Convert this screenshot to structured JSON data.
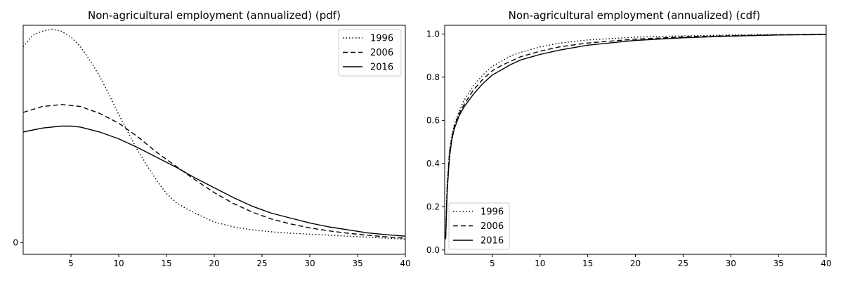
{
  "chart_data": [
    {
      "type": "line",
      "title": "Non-agricultural employment (annualized) (pdf)",
      "xlabel": "",
      "ylabel": "",
      "xlim": [
        0,
        40
      ],
      "ylim": [
        -0.012,
        0.222
      ],
      "x_ticks": [
        "5",
        "10",
        "15",
        "20",
        "25",
        "30",
        "35",
        "40"
      ],
      "y_ticks": [
        "0"
      ],
      "legend": "top-right",
      "grid": false,
      "series": [
        {
          "name": "1996",
          "style": "dotted",
          "x": [
            0,
            1,
            2,
            3,
            4,
            5,
            6,
            7,
            8,
            9,
            10,
            11,
            12,
            13,
            14,
            15,
            16,
            17,
            18,
            20,
            22,
            24,
            26,
            28,
            30,
            32,
            34,
            36,
            38,
            40
          ],
          "y": [
            0.2,
            0.212,
            0.216,
            0.218,
            0.216,
            0.21,
            0.2,
            0.186,
            0.17,
            0.151,
            0.131,
            0.112,
            0.094,
            0.078,
            0.063,
            0.05,
            0.041,
            0.035,
            0.03,
            0.021,
            0.016,
            0.013,
            0.011,
            0.0095,
            0.0085,
            0.0075,
            0.0065,
            0.0055,
            0.0045,
            0.0035
          ]
        },
        {
          "name": "2006",
          "style": "dashed",
          "x": [
            0,
            2,
            4,
            6,
            8,
            10,
            12,
            14,
            16,
            18,
            20,
            22,
            24,
            26,
            28,
            30,
            32,
            34,
            36,
            38,
            40
          ],
          "y": [
            0.133,
            0.139,
            0.141,
            0.139,
            0.132,
            0.122,
            0.108,
            0.092,
            0.078,
            0.064,
            0.051,
            0.04,
            0.031,
            0.024,
            0.019,
            0.015,
            0.012,
            0.0095,
            0.0075,
            0.0058,
            0.0045
          ]
        },
        {
          "name": "2016",
          "style": "solid",
          "x": [
            0,
            2,
            4,
            5,
            6,
            8,
            10,
            12,
            14,
            16,
            18,
            20,
            22,
            24,
            26,
            28,
            30,
            32,
            34,
            36,
            38,
            40
          ],
          "y": [
            0.113,
            0.117,
            0.119,
            0.119,
            0.118,
            0.113,
            0.106,
            0.097,
            0.087,
            0.077,
            0.066,
            0.056,
            0.046,
            0.037,
            0.03,
            0.025,
            0.02,
            0.016,
            0.013,
            0.01,
            0.008,
            0.0065
          ]
        }
      ]
    },
    {
      "type": "line",
      "title": "Non-agricultural employment (annualized) (cdf)",
      "xlabel": "",
      "ylabel": "",
      "xlim": [
        0,
        40
      ],
      "ylim": [
        -0.02,
        1.04
      ],
      "x_ticks": [
        "5",
        "10",
        "15",
        "20",
        "25",
        "30",
        "35",
        "40"
      ],
      "y_ticks": [
        "0.0",
        "0.2",
        "0.4",
        "0.6",
        "0.8",
        "1.0"
      ],
      "legend": "bottom-left",
      "grid": false,
      "series": [
        {
          "name": "1996",
          "style": "dotted",
          "x": [
            0.1,
            0.25,
            0.5,
            0.75,
            1,
            1.5,
            2,
            3,
            4,
            5,
            6,
            7,
            8,
            10,
            12,
            15,
            20,
            25,
            30,
            35,
            40
          ],
          "y": [
            0.08,
            0.3,
            0.46,
            0.53,
            0.58,
            0.64,
            0.69,
            0.76,
            0.81,
            0.85,
            0.875,
            0.9,
            0.915,
            0.94,
            0.957,
            0.972,
            0.985,
            0.991,
            0.995,
            0.997,
            0.998
          ]
        },
        {
          "name": "2006",
          "style": "dashed",
          "x": [
            0.1,
            0.25,
            0.5,
            0.75,
            1,
            1.5,
            2,
            3,
            4,
            5,
            6,
            7,
            8,
            10,
            12,
            15,
            20,
            25,
            30,
            35,
            40
          ],
          "y": [
            0.06,
            0.28,
            0.45,
            0.52,
            0.57,
            0.63,
            0.67,
            0.74,
            0.79,
            0.83,
            0.855,
            0.875,
            0.895,
            0.92,
            0.94,
            0.958,
            0.976,
            0.986,
            0.992,
            0.996,
            0.998
          ]
        },
        {
          "name": "2016",
          "style": "solid",
          "x": [
            0.1,
            0.25,
            0.5,
            0.75,
            1,
            1.5,
            2,
            3,
            4,
            5,
            6,
            7,
            8,
            10,
            12,
            15,
            20,
            25,
            30,
            35,
            40
          ],
          "y": [
            0.05,
            0.26,
            0.43,
            0.51,
            0.56,
            0.62,
            0.66,
            0.72,
            0.77,
            0.81,
            0.835,
            0.86,
            0.88,
            0.905,
            0.925,
            0.948,
            0.97,
            0.982,
            0.99,
            0.995,
            0.997
          ]
        }
      ]
    }
  ]
}
